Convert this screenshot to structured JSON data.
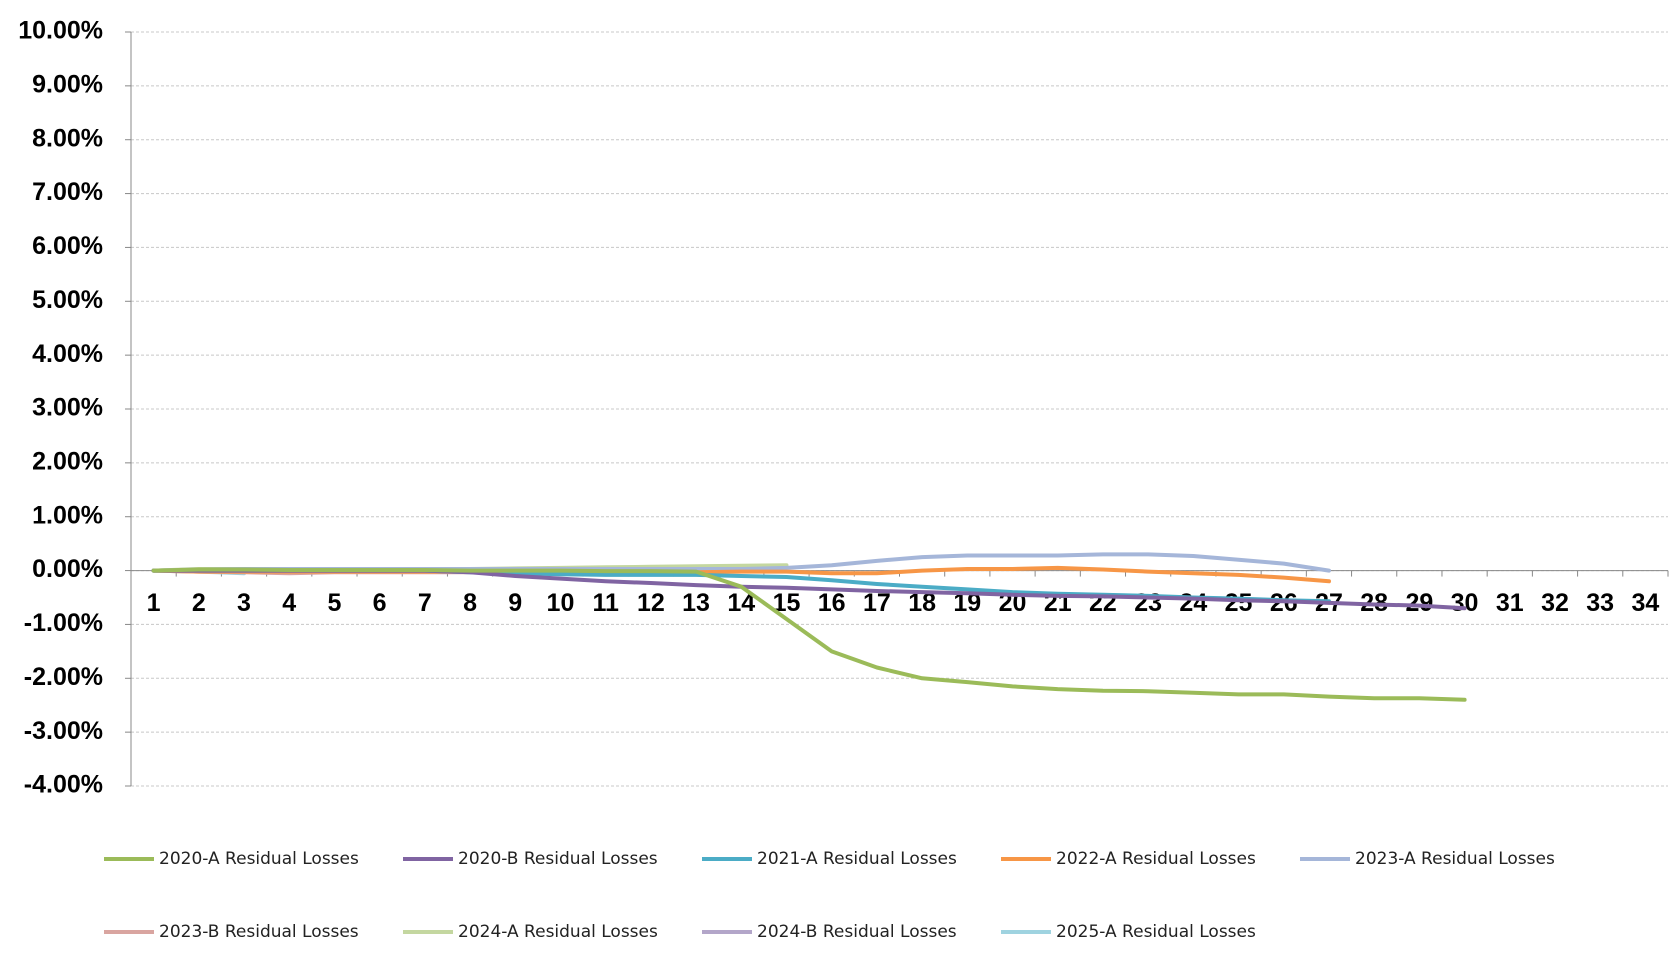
{
  "chart_data": {
    "type": "line",
    "categories": [
      "1",
      "2",
      "3",
      "4",
      "5",
      "6",
      "7",
      "8",
      "9",
      "10",
      "11",
      "12",
      "13",
      "14",
      "15",
      "16",
      "17",
      "18",
      "19",
      "20",
      "21",
      "22",
      "23",
      "24",
      "25",
      "26",
      "27",
      "28",
      "29",
      "30",
      "31",
      "32",
      "33",
      "34"
    ],
    "ylim": [
      -4,
      10
    ],
    "yticks": [
      {
        "value": -4,
        "label": "-4.00%"
      },
      {
        "value": -3,
        "label": "-3.00%"
      },
      {
        "value": -2,
        "label": "-2.00%"
      },
      {
        "value": -1,
        "label": "-1.00%"
      },
      {
        "value": 0,
        "label": "0.00%"
      },
      {
        "value": 1,
        "label": "1.00%"
      },
      {
        "value": 2,
        "label": "2.00%"
      },
      {
        "value": 3,
        "label": "3.00%"
      },
      {
        "value": 4,
        "label": "4.00%"
      },
      {
        "value": 5,
        "label": "5.00%"
      },
      {
        "value": 6,
        "label": "6.00%"
      },
      {
        "value": 7,
        "label": "7.00%"
      },
      {
        "value": 8,
        "label": "8.00%"
      },
      {
        "value": 9,
        "label": "9.00%"
      },
      {
        "value": 10,
        "label": "10.00%"
      }
    ],
    "grid": true,
    "series": [
      {
        "name": "2020-A Residual Losses",
        "color": "#9bbb59",
        "values": [
          0,
          0.02,
          0.02,
          0.01,
          0.01,
          0.01,
          0.01,
          0,
          0,
          0,
          -0.01,
          -0.01,
          -0.02,
          -0.3,
          -0.9,
          -1.5,
          -1.8,
          -2.0,
          -2.07,
          -2.15,
          -2.2,
          -2.23,
          -2.24,
          -2.27,
          -2.3,
          -2.3,
          -2.34,
          -2.37,
          -2.37,
          -2.4,
          null,
          null,
          null,
          null
        ]
      },
      {
        "name": "2020-B Residual Losses",
        "color": "#8064a2",
        "values": [
          0,
          0,
          0,
          0,
          0,
          0,
          0,
          -0.03,
          -0.1,
          -0.15,
          -0.2,
          -0.23,
          -0.27,
          -0.3,
          -0.32,
          -0.35,
          -0.38,
          -0.4,
          -0.42,
          -0.45,
          -0.47,
          -0.48,
          -0.5,
          -0.52,
          -0.55,
          -0.57,
          -0.6,
          -0.63,
          -0.65,
          -0.7,
          null,
          null,
          null,
          null
        ]
      },
      {
        "name": "2021-A Residual Losses",
        "color": "#4bacc6",
        "values": [
          0,
          0,
          0,
          0,
          0,
          0,
          0,
          -0.03,
          -0.05,
          -0.07,
          -0.08,
          -0.08,
          -0.08,
          -0.1,
          -0.12,
          -0.18,
          -0.25,
          -0.3,
          -0.35,
          -0.4,
          -0.43,
          -0.45,
          -0.47,
          -0.5,
          -0.52,
          -0.55,
          -0.57,
          null,
          null,
          null,
          null,
          null,
          null,
          null
        ]
      },
      {
        "name": "2022-A Residual Losses",
        "color": "#f79646",
        "values": [
          0,
          -0.02,
          -0.02,
          -0.02,
          -0.02,
          -0.02,
          -0.02,
          -0.02,
          -0.02,
          -0.02,
          -0.02,
          -0.02,
          -0.03,
          -0.02,
          -0.02,
          -0.05,
          -0.05,
          0,
          0.03,
          0.03,
          0.05,
          0.02,
          -0.02,
          -0.05,
          -0.08,
          -0.13,
          -0.2,
          null,
          null,
          null,
          null,
          null,
          null,
          null
        ]
      },
      {
        "name": "2023-A Residual Losses",
        "color": "#a5b6d9",
        "values": [
          0,
          0.02,
          0.03,
          0.03,
          0.03,
          0.03,
          0.03,
          0.03,
          0.03,
          0.03,
          0.03,
          0.03,
          0.03,
          0.03,
          0.05,
          0.1,
          0.18,
          0.25,
          0.28,
          0.28,
          0.28,
          0.3,
          0.3,
          0.27,
          0.2,
          0.13,
          0,
          null,
          null,
          null,
          null,
          null,
          null,
          null
        ]
      },
      {
        "name": "2023-B Residual Losses",
        "color": "#d9a5a0",
        "values": [
          0,
          -0.02,
          -0.03,
          -0.05,
          -0.03,
          -0.03,
          -0.03,
          -0.03,
          -0.03,
          -0.03,
          -0.03,
          -0.03,
          null,
          null,
          null,
          null,
          null,
          null,
          null,
          null,
          null,
          null,
          null,
          null,
          null,
          null,
          null,
          null,
          null,
          null,
          null,
          null,
          null,
          null
        ]
      },
      {
        "name": "2024-A Residual Losses",
        "color": "#c4d7a0",
        "values": [
          0,
          0.03,
          0.03,
          0.03,
          0.03,
          0.03,
          0.03,
          0.03,
          0.04,
          0.05,
          0.06,
          0.07,
          0.08,
          0.09,
          0.1,
          null,
          null,
          null,
          null,
          null,
          null,
          null,
          null,
          null,
          null,
          null,
          null,
          null,
          null,
          null,
          null,
          null,
          null,
          null
        ]
      },
      {
        "name": "2024-B Residual Losses",
        "color": "#b3a6c9",
        "values": [
          0,
          0.02,
          0.02,
          0.02,
          0.02,
          0.02,
          0.02,
          0.02,
          0.02,
          null,
          null,
          null,
          null,
          null,
          null,
          null,
          null,
          null,
          null,
          null,
          null,
          null,
          null,
          null,
          null,
          null,
          null,
          null,
          null,
          null,
          null,
          null,
          null,
          null
        ]
      },
      {
        "name": "2025-A Residual Losses",
        "color": "#9fd3e0",
        "values": [
          0,
          -0.02,
          -0.05,
          null,
          null,
          null,
          null,
          null,
          null,
          null,
          null,
          null,
          null,
          null,
          null,
          null,
          null,
          null,
          null,
          null,
          null,
          null,
          null,
          null,
          null,
          null,
          null,
          null,
          null,
          null,
          null,
          null,
          null,
          null
        ]
      }
    ]
  }
}
